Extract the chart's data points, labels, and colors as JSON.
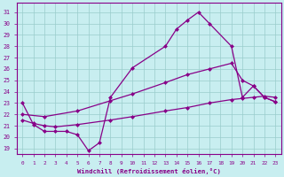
{
  "background_color": "#c8eef0",
  "line_color": "#880088",
  "grid_color": "#99cccc",
  "xlabel": "Windchill (Refroidissement éolien,°C)",
  "ylabel_ticks": [
    19,
    20,
    21,
    22,
    23,
    24,
    25,
    26,
    27,
    28,
    29,
    30,
    31
  ],
  "xlabel_ticks": [
    0,
    1,
    2,
    3,
    4,
    5,
    6,
    7,
    8,
    9,
    10,
    11,
    12,
    13,
    14,
    15,
    16,
    17,
    18,
    19,
    20,
    21,
    22,
    23
  ],
  "xlim": [
    -0.5,
    23.5
  ],
  "ylim": [
    18.5,
    31.8
  ],
  "line1_x": [
    0,
    1,
    2,
    3,
    4,
    5,
    6,
    7,
    8,
    10,
    13,
    14,
    15,
    16,
    17,
    19,
    20,
    21,
    22,
    23
  ],
  "line1_y": [
    23.0,
    21.1,
    20.5,
    20.5,
    20.5,
    20.2,
    18.8,
    19.5,
    23.5,
    26.1,
    28.0,
    29.5,
    30.3,
    31.0,
    30.0,
    28.0,
    23.5,
    24.5,
    23.5,
    23.1
  ],
  "line2_x": [
    0,
    1,
    2,
    3,
    5,
    8,
    10,
    13,
    15,
    17,
    19,
    20,
    21,
    22,
    23
  ],
  "line2_y": [
    21.5,
    21.2,
    21.0,
    20.9,
    21.1,
    21.5,
    21.8,
    22.3,
    22.6,
    23.0,
    23.3,
    23.4,
    23.5,
    23.6,
    23.5
  ],
  "line3_x": [
    0,
    2,
    5,
    8,
    10,
    13,
    15,
    17,
    19,
    20,
    21,
    22,
    23
  ],
  "line3_y": [
    22.0,
    21.8,
    22.3,
    23.2,
    23.8,
    24.8,
    25.5,
    26.0,
    26.5,
    25.0,
    24.5,
    23.5,
    23.1
  ]
}
